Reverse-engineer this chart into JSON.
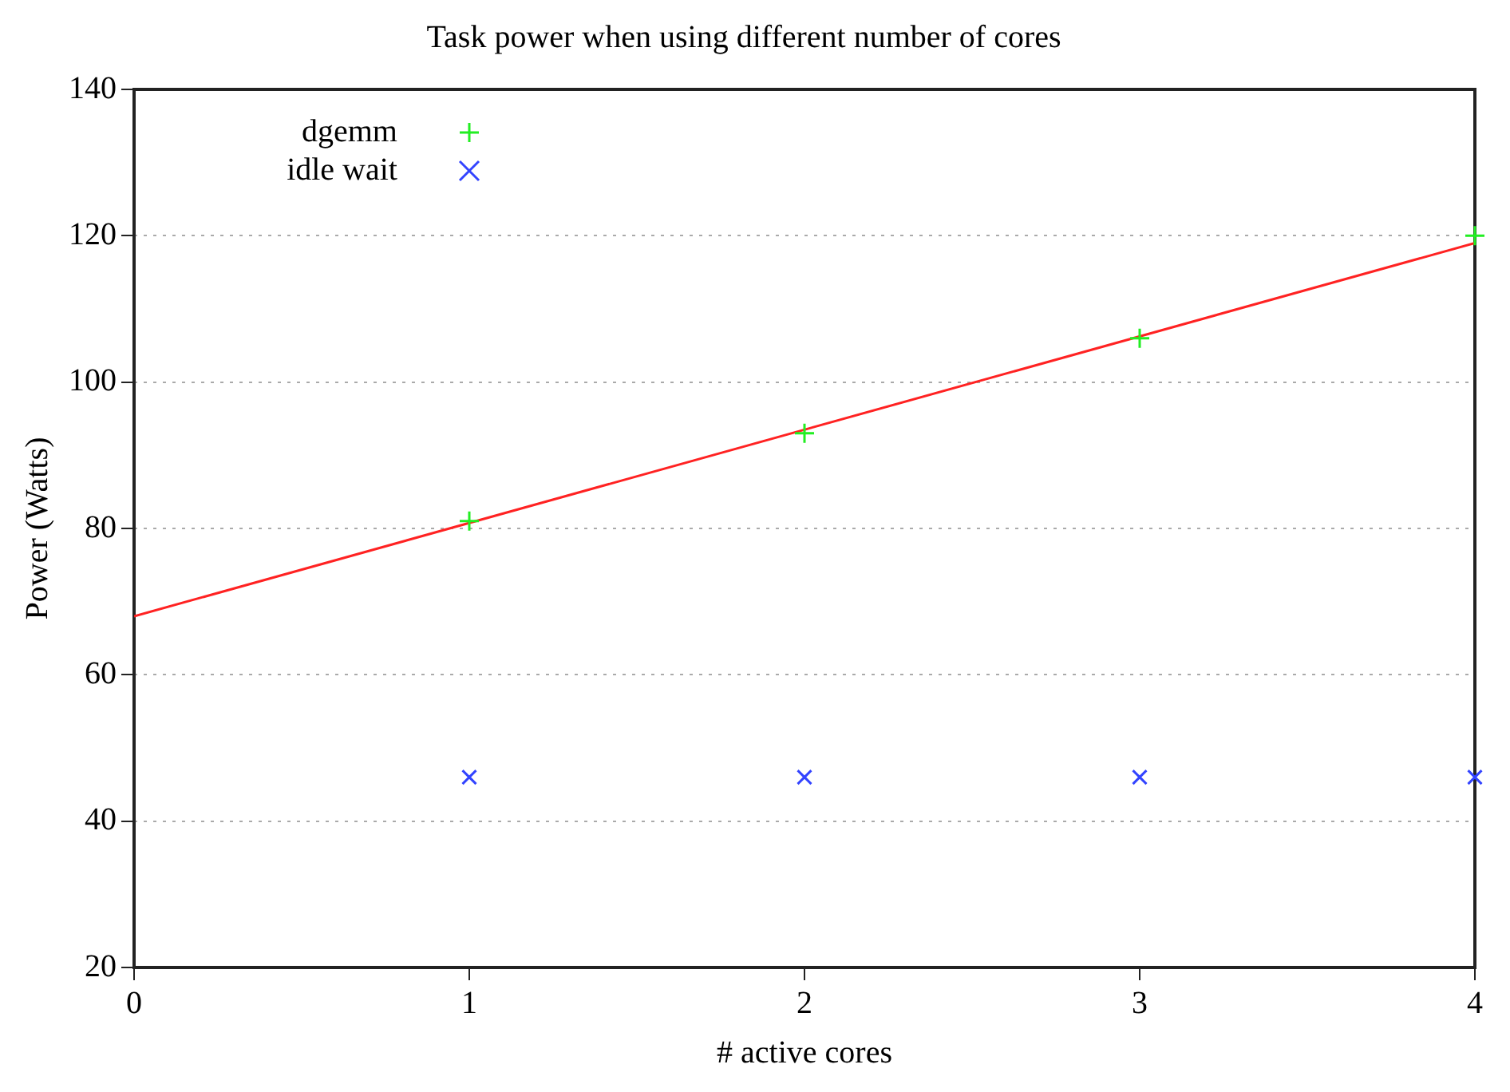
{
  "chart_data": {
    "type": "scatter",
    "title": "Task power when using different number of cores",
    "xlabel": "# active cores",
    "ylabel": "Power (Watts)",
    "x": [
      1,
      2,
      3,
      4
    ],
    "series": [
      {
        "name": "dgemm",
        "color": "#22ee22",
        "values": [
          81,
          93,
          106,
          120
        ],
        "marker": "cross"
      },
      {
        "name": "idle wait",
        "color": "#3344ff",
        "values": [
          46,
          46,
          46,
          46
        ],
        "marker": "x"
      },
      {
        "type": "line",
        "color": "#ff2222",
        "x": [
          0,
          4
        ],
        "values": [
          68,
          119
        ],
        "marker": "none"
      }
    ],
    "xlim": [
      0,
      4
    ],
    "xticks": [
      0,
      1,
      2,
      3,
      4
    ],
    "ylim": [
      20,
      140
    ],
    "yticks": [
      20,
      40,
      60,
      80,
      100,
      120,
      140
    ],
    "grid": "y",
    "legend": "top left"
  }
}
